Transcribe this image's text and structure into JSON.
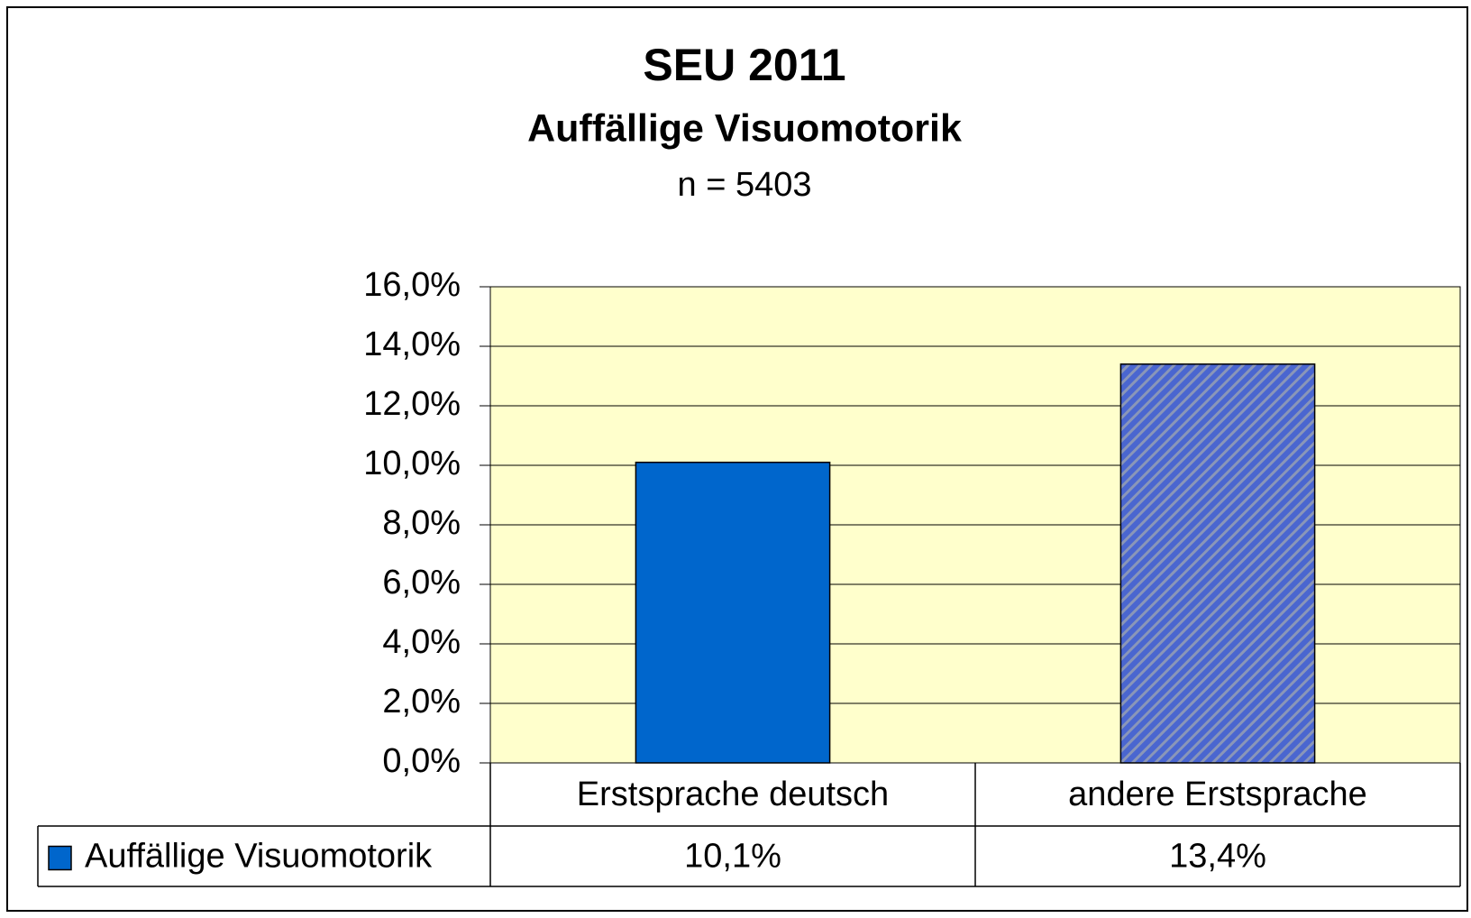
{
  "chart_data": {
    "type": "bar",
    "title": "SEU 2011",
    "subtitle": "Auffällige Visuomotorik",
    "annotation": "n = 5403",
    "categories": [
      "Erstsprache deutsch",
      "andere Erstsprache"
    ],
    "series": [
      {
        "name": "Auffällige Visuomotorik",
        "color": "#0066cc",
        "values": [
          10.1,
          13.4
        ],
        "value_labels": [
          "10,1%",
          "13,4%"
        ]
      }
    ],
    "bar_colors": [
      "#0066cc",
      "#4a66d0"
    ],
    "bar_hatch": [
      false,
      true
    ],
    "plot_background": "#ffffcc",
    "ylim": [
      0,
      16
    ],
    "yticks": [
      {
        "value": 0,
        "label": "0,0%"
      },
      {
        "value": 2,
        "label": "2,0%"
      },
      {
        "value": 4,
        "label": "4,0%"
      },
      {
        "value": 6,
        "label": "6,0%"
      },
      {
        "value": 8,
        "label": "8,0%"
      },
      {
        "value": 10,
        "label": "10,0%"
      },
      {
        "value": 12,
        "label": "12,0%"
      },
      {
        "value": 14,
        "label": "14,0%"
      },
      {
        "value": 16,
        "label": "16,0%"
      }
    ],
    "grid": true
  }
}
